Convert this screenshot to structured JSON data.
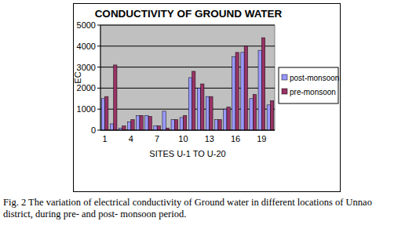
{
  "chart_data": {
    "type": "bar",
    "title": "CONDUCTIVITY OF GROUND WATER",
    "x_label": "SITES U-1 TO U-20",
    "y_label": "EC",
    "categories": [
      "1",
      null,
      null,
      "4",
      null,
      null,
      "7",
      null,
      null,
      "10",
      null,
      null,
      "13",
      null,
      null,
      "16",
      null,
      null,
      "19",
      null
    ],
    "series": [
      {
        "name": "post-monsoon",
        "color": "#9999ff",
        "values": [
          1500,
          300,
          100,
          400,
          700,
          700,
          200,
          900,
          500,
          600,
          2500,
          2000,
          1600,
          500,
          1000,
          3500,
          3700,
          1500,
          3800,
          1200
        ]
      },
      {
        "name": "pre-monsoon",
        "color": "#993366",
        "values": [
          1600,
          3100,
          200,
          500,
          700,
          650,
          200,
          100,
          500,
          700,
          2800,
          2200,
          1600,
          500,
          1100,
          3700,
          4000,
          1700,
          4400,
          1400
        ]
      }
    ],
    "ylim": [
      0,
      5000
    ],
    "yticks": [
      0,
      1000,
      2000,
      3000,
      4000,
      5000
    ],
    "grid": true,
    "legend": "right",
    "caption": "Fig. 2 The variation of  electrical conductivity of Ground water in different locations of Unnao district, during pre- and post-  monsoon period."
  }
}
